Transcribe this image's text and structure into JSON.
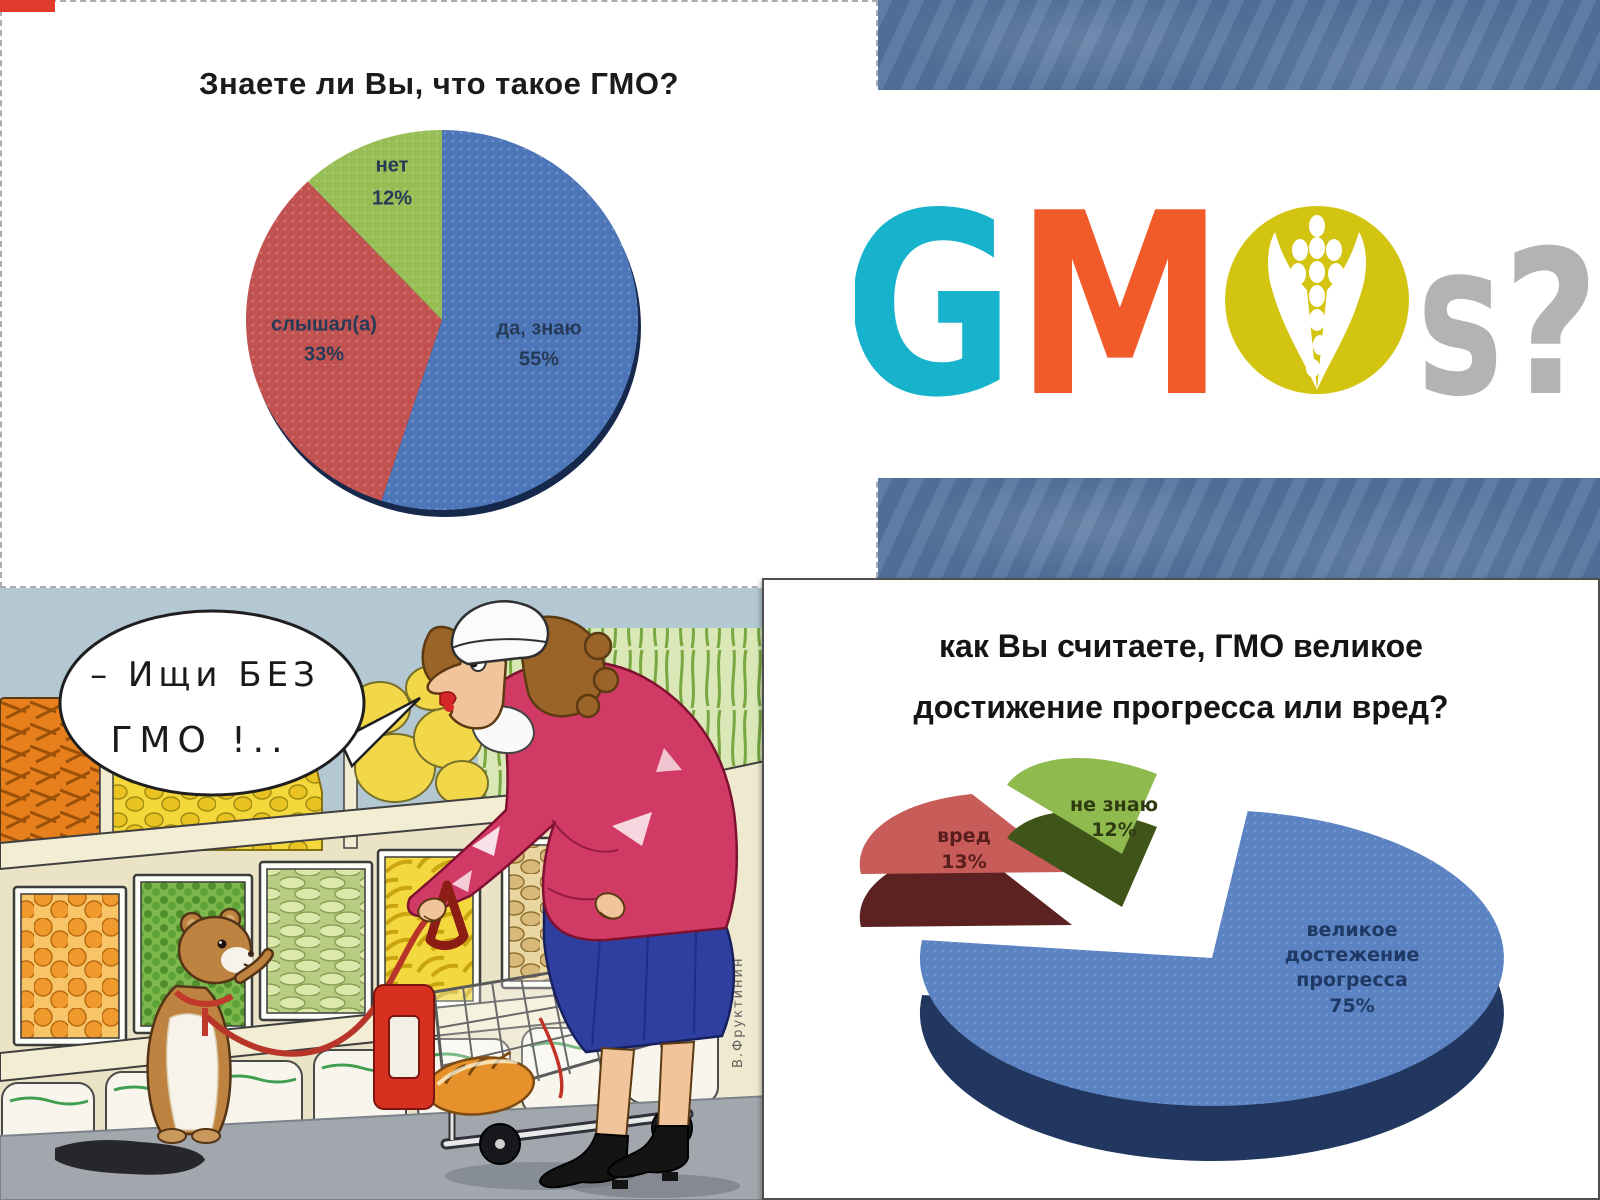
{
  "chart_data": [
    {
      "type": "pie",
      "title": "Знаете ли Вы, что такое ГМО?",
      "categories": [
        "да, знаю",
        "слышал(а)",
        "нет"
      ],
      "values": [
        55,
        33,
        12
      ],
      "colors": [
        "#4d76b9",
        "#c25250",
        "#97bd55"
      ],
      "labels": [
        [
          "да, знаю",
          "55%"
        ],
        [
          "слышал(а)",
          "33%"
        ],
        [
          "нет",
          "12%"
        ]
      ],
      "label_color": "#253a57",
      "legend": "none",
      "start_angle": "top, clockwise"
    },
    {
      "type": "pie",
      "style": "3d-exploded",
      "title": "как Вы считаете, ГМО великое достижение прогресса или вред?",
      "title_lines": [
        "как Вы считаете, ГМО великое",
        "достижение прогресса или вред?"
      ],
      "categories": [
        "великое достежение прогресса",
        "вред",
        "не знаю"
      ],
      "values": [
        75,
        13,
        12
      ],
      "colors_top": [
        "#5b83c2",
        "#c75c59",
        "#8fba4e"
      ],
      "colors_side": [
        "#22375f",
        "#5c2222",
        "#3f5418"
      ],
      "labels": [
        [
          "великое",
          "достежение",
          "прогресса",
          "75%"
        ],
        [
          "вред",
          "13%"
        ],
        [
          "не знаю",
          "12%"
        ]
      ],
      "label_colors": [
        "#1f3864",
        "#5a1d1d",
        "#2f3a10"
      ]
    }
  ],
  "logo": {
    "letters": {
      "g": "G",
      "m": "M",
      "s": "s",
      "q": "?"
    },
    "colors": {
      "g": "#17b3cc",
      "m": "#f15a29",
      "o_circle": "#d3c412",
      "corn": "#ffffff",
      "sq": "#b2b3b5"
    }
  },
  "cartoon": {
    "speech_line1": "– Ищи  БЕЗ",
    "speech_line2": "ГМО !..",
    "signature": "В.Фруктинин"
  },
  "background": {
    "band_color": "#54749e",
    "panel1_border": "#a8adb3",
    "panel2_border": "#4f4f4f",
    "corner_sliver": "#e23b2e",
    "cartoon_wall": "#b3c8d2",
    "cartoon_floor": "#a2a7ad"
  }
}
